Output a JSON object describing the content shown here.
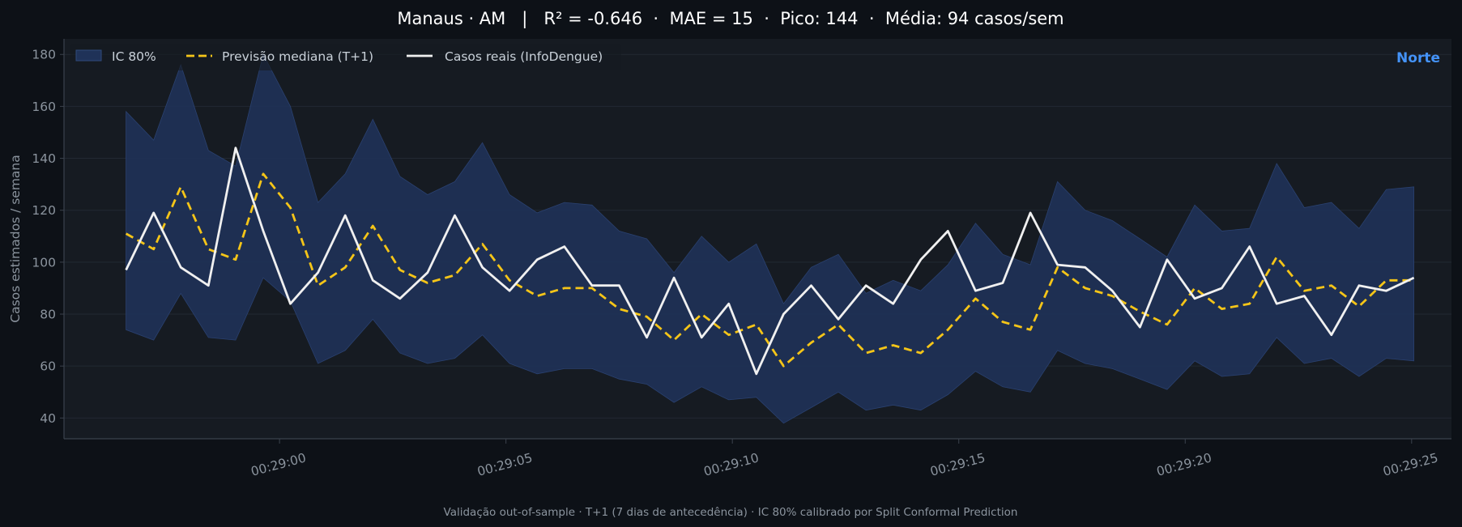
{
  "title": "Manaus · AM   |   R² = -0.646  ·  MAE = 15  ·  Pico: 144  ·  Média: 94 casos/sem",
  "footer": "Validação out-of-sample · T+1 (7 dias de antecedência) · IC 80% calibrado por Split Conformal Prediction",
  "region_label": "Norte",
  "colors": {
    "background": "#0d1117",
    "plot_background": "#161b22",
    "band": "#1f3258",
    "median": "#f5c518",
    "actual": "#f0f0f0",
    "region": "#4493f8"
  },
  "chart_data": {
    "type": "line",
    "title": "Manaus · AM   |   R² = -0.646  ·  MAE = 15  ·  Pico: 144  ·  Média: 94 casos/sem",
    "xlabel": "",
    "ylabel": "Casos estimados / semana",
    "ylim": [
      32,
      186
    ],
    "xlim": [
      -4.76,
      25.88
    ],
    "x_tick_values": [
      0,
      5,
      10,
      15,
      20,
      25
    ],
    "x_tick_labels": [
      "00:29:00",
      "00:29:05",
      "00:29:10",
      "00:29:15",
      "00:29:20",
      "00:29:25"
    ],
    "y_ticks": [
      40,
      60,
      80,
      100,
      120,
      140,
      160,
      180
    ],
    "grid": true,
    "legend_position": "top-left",
    "x": [
      -3.39,
      -2.78,
      -2.18,
      -1.57,
      -0.97,
      -0.36,
      0.24,
      0.85,
      1.45,
      2.06,
      2.66,
      3.27,
      3.87,
      4.48,
      5.08,
      5.69,
      6.29,
      6.9,
      7.5,
      8.11,
      8.71,
      9.32,
      9.92,
      10.53,
      11.13,
      11.74,
      12.34,
      12.95,
      13.55,
      14.16,
      14.76,
      15.37,
      15.97,
      16.58,
      17.18,
      17.79,
      18.39,
      19.0,
      19.6,
      20.21,
      20.81,
      21.42,
      22.02,
      22.63,
      23.23,
      23.84,
      24.44,
      25.05
    ],
    "series": [
      {
        "name": "IC 80%",
        "kind": "band",
        "lower": [
          74,
          70,
          88,
          71,
          70,
          94,
          85,
          61,
          66,
          78,
          65,
          61,
          63,
          72,
          61,
          57,
          59,
          59,
          55,
          53,
          46,
          52,
          47,
          48,
          38,
          44,
          50,
          43,
          45,
          43,
          49,
          58,
          52,
          50,
          66,
          61,
          59,
          55,
          51,
          62,
          56,
          57,
          71,
          61,
          63,
          56,
          63,
          62
        ],
        "upper": [
          158,
          147,
          176,
          143,
          137,
          180,
          160,
          123,
          134,
          155,
          133,
          126,
          131,
          146,
          126,
          119,
          123,
          122,
          112,
          109,
          96,
          110,
          100,
          107,
          84,
          98,
          103,
          88,
          93,
          89,
          99,
          115,
          103,
          99,
          131,
          120,
          116,
          109,
          102,
          122,
          112,
          113,
          138,
          121,
          123,
          113,
          128,
          129
        ]
      },
      {
        "name": "Previsão mediana (T+1)",
        "kind": "dashed",
        "values": [
          111,
          105,
          129,
          105,
          101,
          134,
          121,
          91,
          98,
          114,
          97,
          92,
          95,
          107,
          93,
          87,
          90,
          90,
          82,
          79,
          70,
          80,
          72,
          76,
          60,
          69,
          76,
          65,
          68,
          65,
          74,
          86,
          77,
          74,
          98,
          90,
          87,
          81,
          76,
          90,
          82,
          84,
          102,
          89,
          91,
          83,
          93,
          93
        ]
      },
      {
        "name": "Casos reais (InfoDengue)",
        "kind": "solid",
        "values": [
          97,
          119,
          98,
          91,
          144,
          112,
          84,
          96,
          118,
          93,
          86,
          96,
          118,
          98,
          89,
          101,
          106,
          91,
          91,
          71,
          94,
          71,
          84,
          57,
          80,
          91,
          78,
          91,
          84,
          101,
          112,
          89,
          92,
          119,
          99,
          98,
          89,
          75,
          101,
          86,
          90,
          106,
          84,
          87,
          72,
          91,
          89,
          94
        ]
      }
    ]
  }
}
